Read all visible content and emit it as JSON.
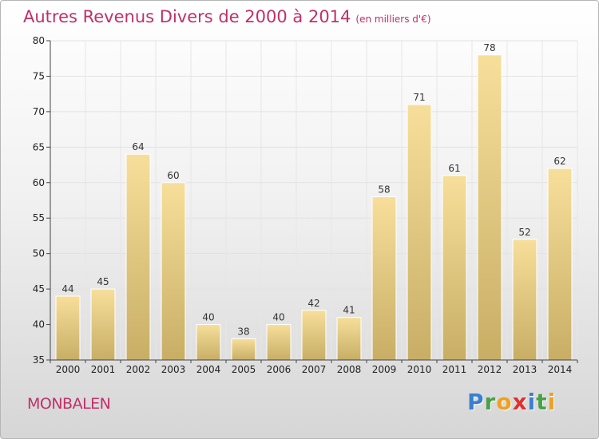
{
  "title": "Autres Revenus Divers de 2000 à 2014",
  "subtitle": "(en milliers d'€)",
  "city": "MONBALEN",
  "logo": {
    "letters": [
      "P",
      "r",
      "o",
      "x",
      "i",
      "t",
      "i"
    ],
    "colors": [
      "#3a7fd0",
      "#4aa048",
      "#f0a020",
      "#e03030",
      "#3a7fd0",
      "#4aa048",
      "#f0a020"
    ]
  },
  "chart_data": {
    "type": "bar",
    "categories": [
      "2000",
      "2001",
      "2002",
      "2003",
      "2004",
      "2005",
      "2006",
      "2007",
      "2008",
      "2009",
      "2010",
      "2011",
      "2012",
      "2013",
      "2014"
    ],
    "values": [
      44,
      45,
      64,
      60,
      40,
      38,
      40,
      42,
      41,
      58,
      71,
      61,
      78,
      52,
      62
    ],
    "ylim": [
      35,
      80
    ],
    "yticks": [
      "35",
      "40",
      "45",
      "50",
      "55",
      "60",
      "65",
      "70",
      "75",
      "80"
    ],
    "grid": true,
    "bar_color_top": "#f7df9b",
    "bar_color_bottom": "#c8ae65"
  }
}
